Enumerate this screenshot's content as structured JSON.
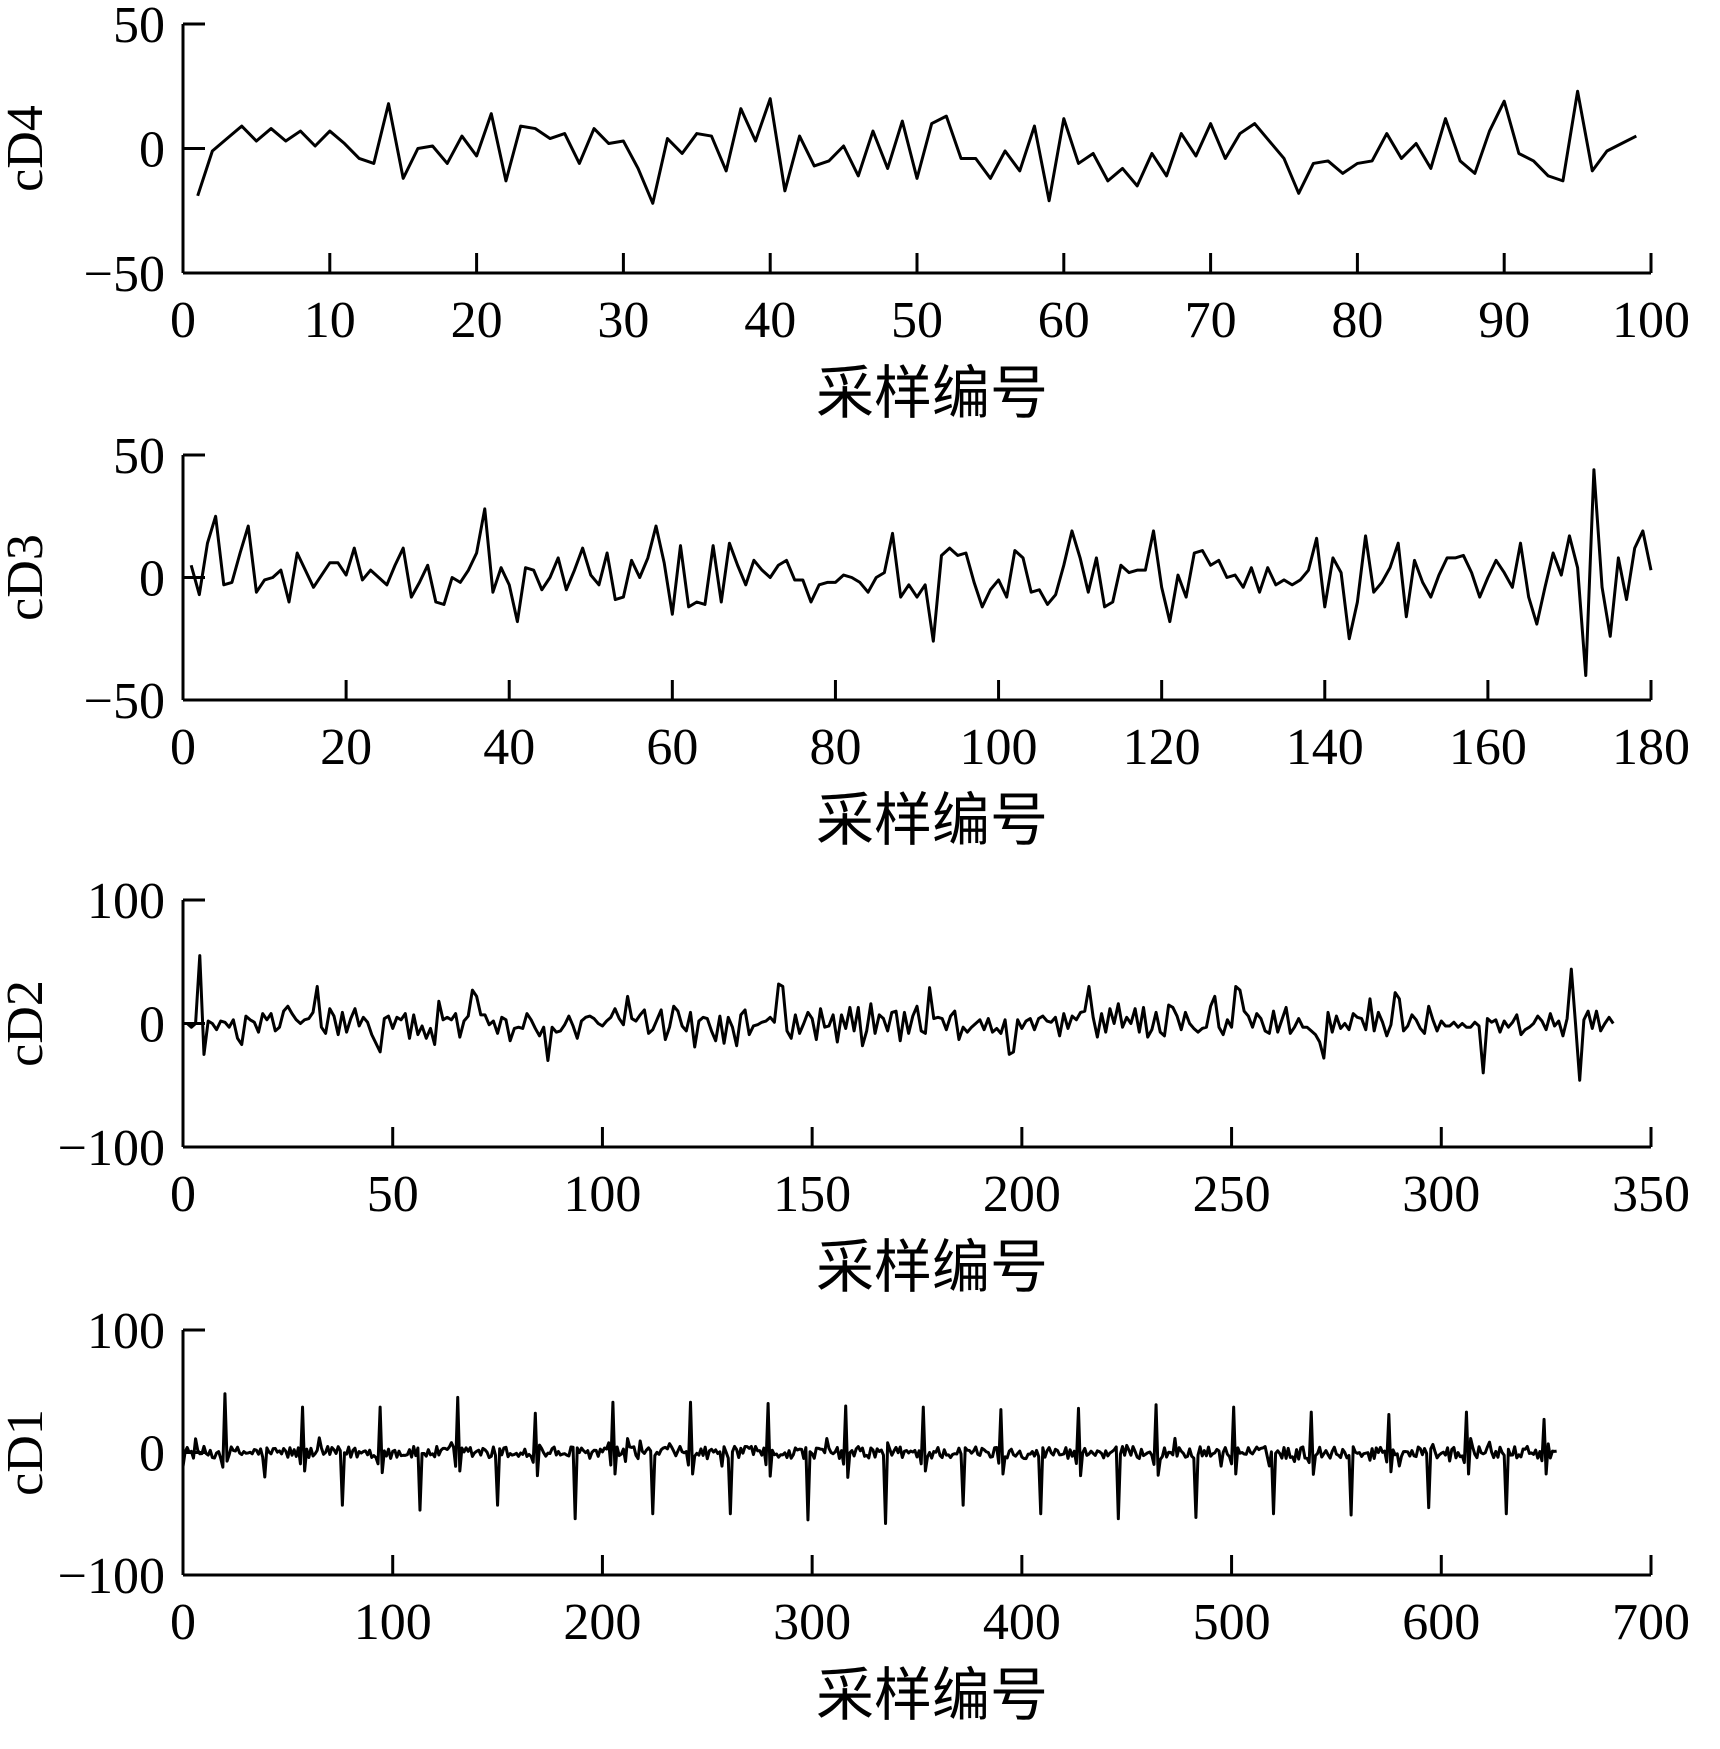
{
  "chart_data": [
    {
      "type": "line",
      "ylabel": "cD4",
      "xlabel": "采样编号",
      "xlim": [
        0,
        100
      ],
      "ylim": [
        -50,
        50
      ],
      "xticks": [
        0,
        10,
        20,
        30,
        40,
        50,
        60,
        70,
        80,
        90,
        100
      ],
      "yticks": [
        -50,
        0,
        50
      ],
      "x_tick_labels": [
        "0",
        "10",
        "20",
        "30",
        "40",
        "50",
        "60",
        "70",
        "80",
        "90",
        "100"
      ],
      "y_tick_labels": [
        "−50",
        "0",
        "50"
      ],
      "grid": false,
      "line_color": "#000000",
      "x_start": 1,
      "x_step": 1,
      "values": [
        -19,
        -1,
        4,
        9,
        3,
        8,
        3,
        7,
        1,
        7,
        2,
        -4,
        -6,
        18,
        -12,
        0,
        1,
        -6,
        5,
        -3,
        14,
        -13,
        9,
        8,
        4,
        6,
        -6,
        8,
        2,
        3,
        -8,
        -22,
        4,
        -2,
        6,
        5,
        -9,
        16,
        3,
        20,
        -17,
        5,
        -7,
        -5,
        1,
        -11,
        7,
        -8,
        11,
        -12,
        10,
        13,
        -4,
        -4,
        -12,
        -1,
        -9,
        9,
        -21,
        12,
        -6,
        -2,
        -13,
        -8,
        -15,
        -2,
        -11,
        6,
        -3,
        10,
        -4,
        6,
        10,
        3,
        -4,
        -18,
        -6,
        -5,
        -10,
        -6,
        -5,
        6,
        -4,
        2,
        -8,
        12,
        -5,
        -10,
        7,
        19,
        -2,
        -5,
        -11,
        -13,
        23,
        -9,
        -1,
        2,
        5
      ]
    },
    {
      "type": "line",
      "ylabel": "cD3",
      "xlabel": "采样编号",
      "xlim": [
        0,
        180
      ],
      "ylim": [
        -50,
        50
      ],
      "xticks": [
        0,
        20,
        40,
        60,
        80,
        100,
        120,
        140,
        160,
        180
      ],
      "yticks": [
        -50,
        0,
        50
      ],
      "x_tick_labels": [
        "0",
        "20",
        "40",
        "60",
        "80",
        "100",
        "120",
        "140",
        "160",
        "180"
      ],
      "y_tick_labels": [
        "−50",
        "0",
        "50"
      ],
      "grid": false,
      "line_color": "#000000",
      "x_start": 1,
      "x_step": 1,
      "values": [
        5,
        -7,
        14,
        25,
        -3,
        -2,
        10,
        21,
        -6,
        -1,
        0,
        3,
        -10,
        10,
        3,
        -4,
        1,
        6,
        6,
        1,
        12,
        -1,
        3,
        0,
        -3,
        5,
        12,
        -8,
        -2,
        5,
        -10,
        -11,
        0,
        -2,
        3,
        10,
        28,
        -6,
        4,
        -3,
        -18,
        4,
        3,
        -5,
        0,
        8,
        -5,
        3,
        12,
        1,
        -3,
        10,
        -9,
        -8,
        7,
        0,
        8,
        21,
        6,
        -15,
        13,
        -12,
        -10,
        -11,
        13,
        -10,
        14,
        5,
        -3,
        7,
        3,
        0,
        5,
        7,
        -1,
        -1,
        -10,
        -3,
        -2,
        -2,
        1,
        0,
        -2,
        -6,
        0,
        2,
        18,
        -8,
        -3,
        -8,
        -3,
        -26,
        9,
        12,
        9,
        10,
        -2,
        -12,
        -5,
        -1,
        -8,
        11,
        8,
        -6,
        -5,
        -11,
        -7,
        5,
        19,
        8,
        -6,
        8,
        -12,
        -10,
        5,
        2,
        3,
        3,
        19,
        -4,
        -18,
        1,
        -8,
        10,
        11,
        5,
        7,
        0,
        1,
        -4,
        4,
        -6,
        4,
        -3,
        -1,
        -3,
        -1,
        3,
        16,
        -12,
        8,
        2,
        -25,
        -10,
        17,
        -6,
        -2,
        4,
        14,
        -16,
        7,
        -2,
        -8,
        1,
        8,
        8,
        9,
        2,
        -8,
        0,
        7,
        2,
        -4,
        14,
        -8,
        -19,
        -4,
        10,
        1,
        17,
        4,
        -40,
        44,
        -4,
        -24,
        8,
        -9,
        12,
        19,
        3
      ]
    },
    {
      "type": "line",
      "ylabel": "cD2",
      "xlabel": "采样编号",
      "xlim": [
        0,
        350
      ],
      "ylim": [
        -100,
        100
      ],
      "xticks": [
        0,
        50,
        100,
        150,
        200,
        250,
        300,
        350
      ],
      "yticks": [
        -100,
        0,
        100
      ],
      "x_tick_labels": [
        "0",
        "50",
        "100",
        "150",
        "200",
        "250",
        "300",
        "350"
      ],
      "y_tick_labels": [
        "−100",
        "0",
        "100"
      ],
      "grid": false,
      "line_color": "#000000",
      "x_start": 0,
      "x_step": 1,
      "values": [
        0,
        0,
        -3,
        0,
        55,
        -25,
        2,
        0,
        -5,
        2,
        1,
        -3,
        3,
        -12,
        -17,
        6,
        3,
        1,
        -7,
        8,
        3,
        8,
        -6,
        -3,
        10,
        14,
        8,
        3,
        0,
        3,
        4,
        9,
        30,
        -3,
        -8,
        12,
        6,
        -9,
        9,
        -7,
        4,
        12,
        -2,
        5,
        1,
        -9,
        -16,
        -23,
        4,
        6,
        -4,
        5,
        3,
        8,
        -12,
        7,
        -9,
        -2,
        -12,
        -4,
        -17,
        18,
        3,
        5,
        3,
        8,
        -11,
        2,
        6,
        27,
        22,
        7,
        7,
        -1,
        2,
        -8,
        5,
        3,
        -14,
        -4,
        -3,
        -4,
        8,
        3,
        -4,
        -10,
        -3,
        -30,
        -3,
        -7,
        -6,
        -1,
        6,
        -2,
        -12,
        2,
        5,
        6,
        4,
        0,
        -2,
        2,
        5,
        12,
        4,
        -1,
        22,
        4,
        2,
        7,
        11,
        -8,
        -5,
        3,
        11,
        -13,
        -3,
        14,
        10,
        -2,
        -6,
        9,
        -19,
        2,
        5,
        4,
        -6,
        -14,
        6,
        -16,
        5,
        -3,
        -18,
        7,
        11,
        -9,
        -2,
        -1,
        1,
        2,
        5,
        1,
        32,
        30,
        -6,
        -12,
        7,
        -8,
        0,
        9,
        4,
        -13,
        12,
        -3,
        -2,
        7,
        -15,
        7,
        -4,
        13,
        -6,
        13,
        -18,
        -6,
        16,
        -8,
        7,
        4,
        -6,
        9,
        10,
        -14,
        9,
        -8,
        6,
        14,
        -6,
        -8,
        29,
        4,
        5,
        4,
        -5,
        6,
        10,
        -13,
        -3,
        -7,
        -3,
        0,
        3,
        -5,
        4,
        -7,
        -4,
        -8,
        3,
        -25,
        -23,
        3,
        -4,
        2,
        4,
        -5,
        4,
        6,
        2,
        1,
        5,
        -10,
        8,
        -4,
        6,
        3,
        9,
        10,
        30,
        5,
        -11,
        8,
        -7,
        12,
        0,
        16,
        -3,
        5,
        0,
        12,
        -7,
        13,
        -11,
        -5,
        9,
        -7,
        -10,
        15,
        13,
        6,
        -5,
        9,
        0,
        -4,
        -7,
        -4,
        -3,
        14,
        22,
        -3,
        -9,
        3,
        -3,
        30,
        27,
        10,
        6,
        -3,
        8,
        4,
        -6,
        -8,
        10,
        -7,
        3,
        13,
        -8,
        -3,
        4,
        -3,
        -3,
        -6,
        -9,
        -15,
        -28,
        9,
        -7,
        6,
        -4,
        0,
        -5,
        8,
        5,
        4,
        -5,
        20,
        -6,
        9,
        1,
        -10,
        -1,
        25,
        20,
        -6,
        -2,
        7,
        3,
        -4,
        -8,
        14,
        3,
        -6,
        2,
        -2,
        -2,
        1,
        -3,
        0,
        -3,
        -3,
        1,
        -2,
        -40,
        4,
        1,
        3,
        -7,
        2,
        -3,
        1,
        7,
        -9,
        -5,
        -3,
        0,
        6,
        2,
        -5,
        8,
        -2,
        2,
        -10,
        4,
        44,
        0,
        -46,
        3,
        10,
        -4,
        10,
        -6,
        0,
        5,
        0
      ]
    },
    {
      "type": "line",
      "ylabel": "cD1",
      "xlabel": "采样编号",
      "xlim": [
        0,
        700
      ],
      "ylim": [
        -100,
        100
      ],
      "xticks": [
        0,
        100,
        200,
        300,
        400,
        500,
        600,
        700
      ],
      "yticks": [
        -100,
        0,
        100
      ],
      "x_tick_labels": [
        "0",
        "100",
        "200",
        "300",
        "400",
        "500",
        "600",
        "700"
      ],
      "y_tick_labels": [
        "−100",
        "0",
        "100"
      ],
      "grid": false,
      "line_color": "#000000",
      "x_start": 0,
      "x_step": 1,
      "period": 37,
      "peaks": [
        {
          "x": 20,
          "up": 48,
          "down": -20
        },
        {
          "x": 57,
          "up": 37,
          "down": -43
        },
        {
          "x": 94,
          "up": 37,
          "down": -47
        },
        {
          "x": 131,
          "up": 45,
          "down": -43
        },
        {
          "x": 168,
          "up": 32,
          "down": -54
        },
        {
          "x": 205,
          "up": 41,
          "down": -50
        },
        {
          "x": 242,
          "up": 41,
          "down": -50
        },
        {
          "x": 279,
          "up": 40,
          "down": -55
        },
        {
          "x": 316,
          "up": 38,
          "down": -58
        },
        {
          "x": 353,
          "up": 37,
          "down": -43
        },
        {
          "x": 390,
          "up": 35,
          "down": -50
        },
        {
          "x": 427,
          "up": 36,
          "down": -54
        },
        {
          "x": 464,
          "up": 39,
          "down": -53
        },
        {
          "x": 501,
          "up": 37,
          "down": -50
        },
        {
          "x": 538,
          "up": 33,
          "down": -51
        },
        {
          "x": 575,
          "up": 31,
          "down": -45
        },
        {
          "x": 612,
          "up": 33,
          "down": -50
        },
        {
          "x": 649,
          "up": 27,
          "down": -50
        }
      ],
      "noise_amplitude": 5,
      "n_points": 656
    }
  ]
}
